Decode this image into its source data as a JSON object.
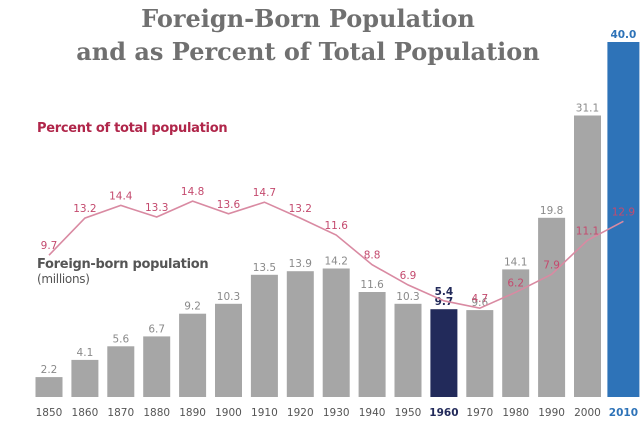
{
  "chart_data": {
    "type": "bar",
    "title_line1": "Foreign-Born Population",
    "title_line2": "and as Percent of Total Population",
    "categories": [
      "1850",
      "1860",
      "1870",
      "1880",
      "1890",
      "1900",
      "1910",
      "1920",
      "1930",
      "1940",
      "1950",
      "1960",
      "1970",
      "1980",
      "1990",
      "2000",
      "2010"
    ],
    "series": [
      {
        "name": "Foreign-born population",
        "unit": "(millions)",
        "type": "bar",
        "values": [
          2.2,
          4.1,
          5.6,
          6.7,
          9.2,
          10.3,
          13.5,
          13.9,
          14.2,
          11.6,
          10.3,
          9.7,
          9.6,
          14.1,
          19.8,
          31.1,
          40.0
        ],
        "value_labels": [
          "2.2",
          "4.1",
          "5.6",
          "6.7",
          "9.2",
          "10.3",
          "13.5",
          "13.9",
          "14.2",
          "11.6",
          "10.3",
          "9.7",
          "9.6",
          "14.1",
          "19.8",
          "31.1",
          "40.0"
        ]
      },
      {
        "name": "Percent of total population",
        "type": "line",
        "values": [
          9.7,
          13.2,
          14.4,
          13.3,
          14.8,
          13.6,
          14.7,
          13.2,
          11.6,
          8.8,
          6.9,
          5.4,
          4.7,
          6.2,
          7.9,
          11.1,
          12.9
        ],
        "value_labels": [
          "9.7",
          "13.2",
          "14.4",
          "13.3",
          "14.8",
          "13.6",
          "14.7",
          "13.2",
          "11.6",
          "8.8",
          "6.9",
          "5.4",
          "4.7",
          "6.2",
          "7.9",
          "11.1",
          "12.9"
        ]
      }
    ],
    "highlight_categories": [
      "1960",
      "2010"
    ],
    "grid": false,
    "colors": {
      "bar": "#a6a6a6",
      "bar_1960": "#222a5a",
      "bar_2010": "#2e73b8",
      "line": "#d98aa2",
      "line_label": "#c44a6e",
      "pct_label": "#b0264a",
      "fb_label": "#555555",
      "title": "#707070",
      "axis_label": "#555555",
      "label_1960": "#222a5a",
      "label_2010": "#2e73b8"
    }
  }
}
